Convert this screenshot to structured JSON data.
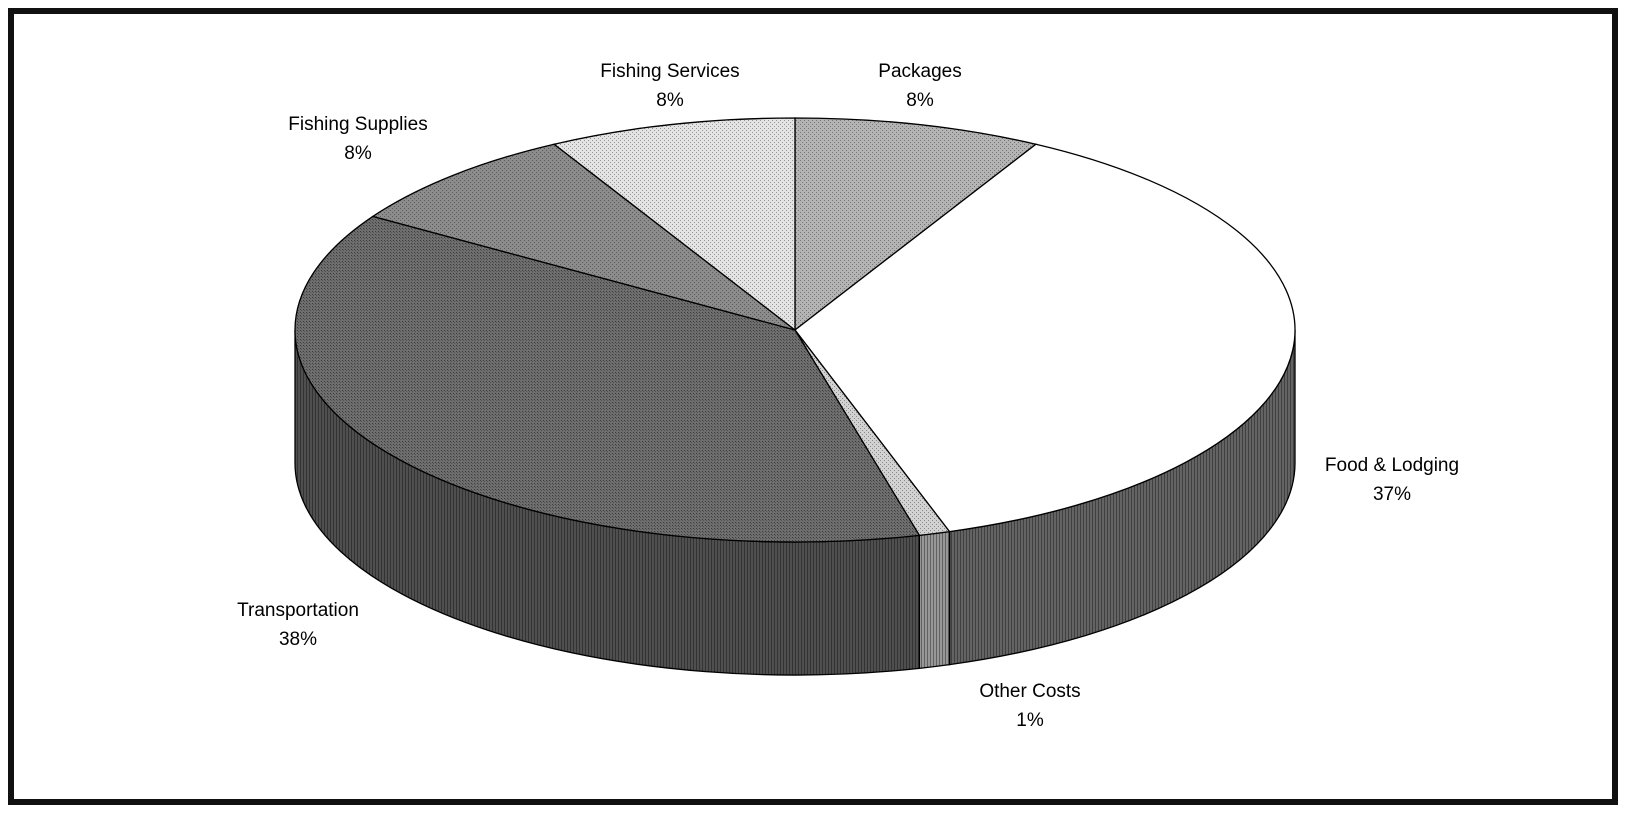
{
  "chart_data": {
    "type": "pie",
    "title": "",
    "style": "3d",
    "slices": [
      {
        "label": "Packages",
        "value_label": "8%",
        "value": 8,
        "color": "#b4b4b4",
        "pattern": "dots"
      },
      {
        "label": "Food & Lodging",
        "value_label": "37%",
        "value": 37,
        "color": "#ffffff",
        "pattern": "none"
      },
      {
        "label": "Other Costs",
        "value_label": "1%",
        "value": 1,
        "color": "#d2d2d2",
        "pattern": "dots"
      },
      {
        "label": "Transportation",
        "value_label": "38%",
        "value": 38,
        "color": "#6e6e6e",
        "pattern": "hatch"
      },
      {
        "label": "Fishing Supplies",
        "value_label": "8%",
        "value": 8,
        "color": "#8c8c8c",
        "pattern": "dots"
      },
      {
        "label": "Fishing Services",
        "value_label": "8%",
        "value": 8,
        "color": "#e4e4e4",
        "pattern": "dots"
      }
    ]
  }
}
